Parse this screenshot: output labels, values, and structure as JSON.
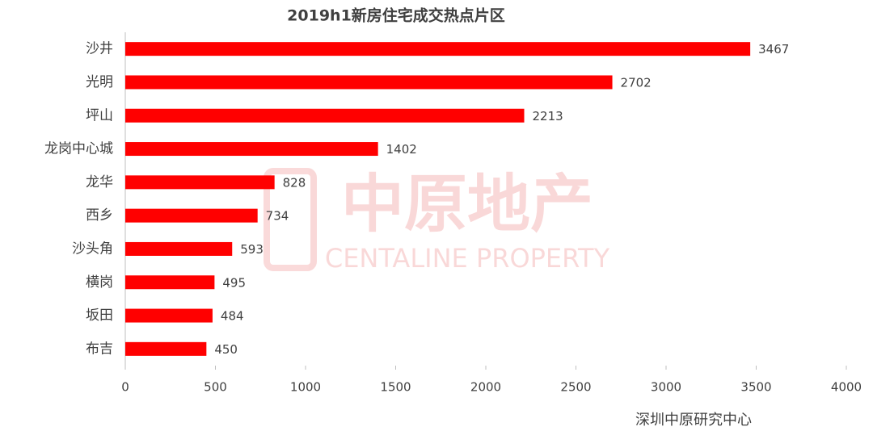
{
  "chart_data": {
    "type": "bar",
    "orientation": "horizontal",
    "title": "2019h1新房住宅成交热点片区",
    "categories": [
      "沙井",
      "光明",
      "坪山",
      "龙岗中心城",
      "龙华",
      "西乡",
      "沙头角",
      "横岗",
      "坂田",
      "布吉"
    ],
    "values": [
      3467,
      2702,
      2213,
      1402,
      828,
      734,
      593,
      495,
      484,
      450
    ],
    "color": "#ff0000",
    "xlim": [
      0,
      4000
    ],
    "xticks": [
      0,
      500,
      1000,
      1500,
      2000,
      2500,
      3000,
      3500,
      4000
    ],
    "source": "深圳中原研究中心",
    "watermark": {
      "text": "中原地产",
      "subtext": "CENTALINE PROPERTY"
    }
  }
}
